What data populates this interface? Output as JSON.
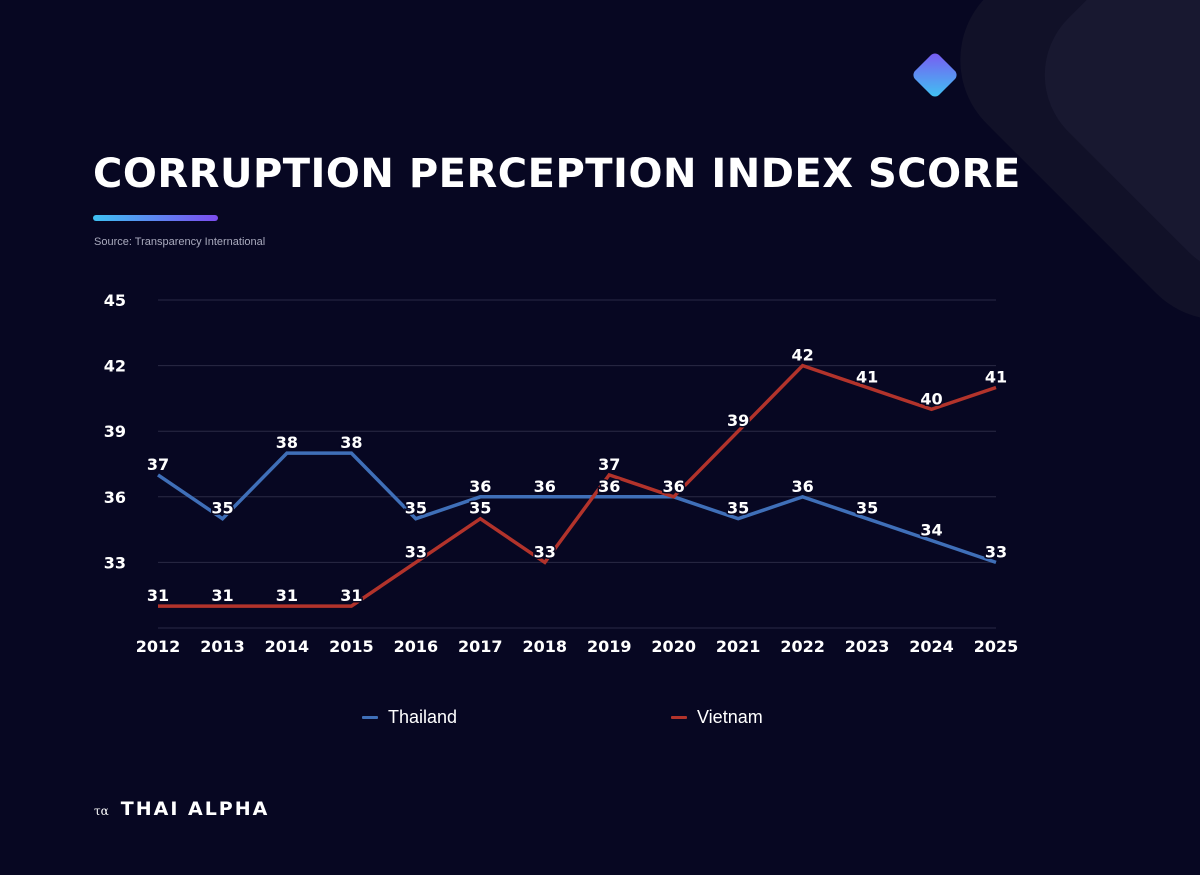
{
  "header": {
    "title": "CORRUPTION PERCEPTION INDEX SCORE",
    "source": "Source: Transparency International"
  },
  "brand": {
    "mark": "τα",
    "name": "THAI ALPHA"
  },
  "colors": {
    "background": "#070722",
    "thailand": "#3f6fb8",
    "vietnam": "#b2332b",
    "accent_start": "#3ec0f2",
    "accent_end": "#7c4cf0"
  },
  "chart_data": {
    "type": "line",
    "title": "CORRUPTION PERCEPTION INDEX SCORE",
    "x": [
      "2012",
      "2013",
      "2014",
      "2015",
      "2016",
      "2017",
      "2018",
      "2019",
      "2020",
      "2021",
      "2022",
      "2023",
      "2024",
      "2025"
    ],
    "series": [
      {
        "name": "Thailand",
        "color": "#3f6fb8",
        "values": [
          37,
          35,
          38,
          38,
          35,
          36,
          36,
          36,
          36,
          35,
          36,
          35,
          34,
          33
        ]
      },
      {
        "name": "Vietnam",
        "color": "#b2332b",
        "values": [
          31,
          31,
          31,
          31,
          33,
          35,
          33,
          37,
          36,
          39,
          42,
          41,
          40,
          41
        ]
      }
    ],
    "yticks": [
      33,
      36,
      39,
      42,
      45
    ],
    "ylim": [
      30,
      45
    ],
    "grid": true,
    "legend": "bottom",
    "data_labels": true
  }
}
